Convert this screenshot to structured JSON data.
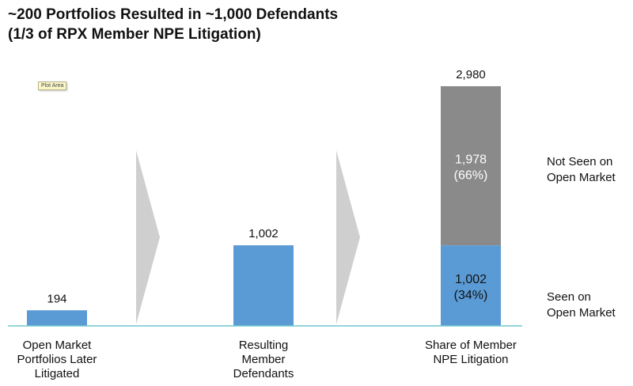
{
  "title_line1": "~200 Portfolios Resulted in ~1,000 Defendants",
  "title_line2": "(1/3 of RPX Member NPE Litigation)",
  "tooltip": "Plot Area",
  "colors": {
    "blue": "#5b9bd5",
    "gray": "#8a8a8a",
    "arrow": "#cfcfcf",
    "axis": "#6fc7cf"
  },
  "chart_data": {
    "type": "bar",
    "categories": [
      "Open Market Portfolios Later Litigated",
      "Resulting Member Defendants",
      "Share of Member NPE Litigation"
    ],
    "category_lines": [
      [
        "Open Market",
        "Portfolios Later",
        "Litigated"
      ],
      [
        "Resulting",
        "Member",
        "Defendants"
      ],
      [
        "Share of Member",
        "NPE Litigation"
      ]
    ],
    "bars": [
      {
        "value": 194,
        "label": "194"
      },
      {
        "value": 1002,
        "label": "1,002"
      },
      {
        "stacked": true,
        "total": 2980,
        "total_label": "2,980",
        "segments": [
          {
            "name": "Seen on Open Market",
            "value": 1002,
            "label_lines": [
              "1,002",
              "(34%)"
            ]
          },
          {
            "name": "Not Seen on Open Market",
            "value": 1978,
            "label_lines": [
              "1,978",
              "(66%)"
            ]
          }
        ]
      }
    ],
    "legend_labels": [
      [
        "Not Seen on",
        "Open Market"
      ],
      [
        "Seen on",
        "Open Market"
      ]
    ],
    "ylim": [
      0,
      2980
    ],
    "grid": false
  }
}
